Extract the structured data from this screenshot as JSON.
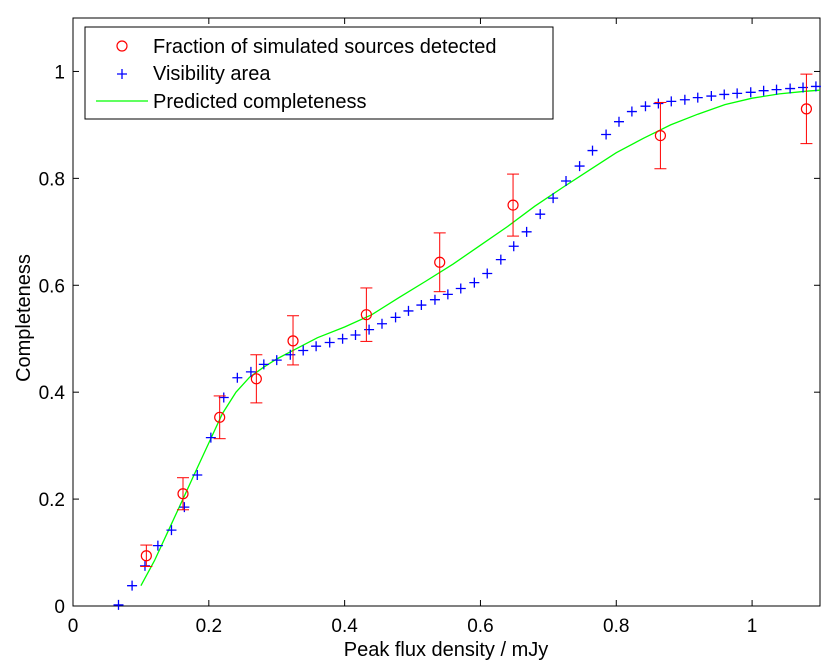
{
  "chart_data": {
    "type": "scatter",
    "title": "",
    "xlabel": "Peak flux density / mJy",
    "ylabel": "Completeness",
    "xlim": [
      0,
      1.1
    ],
    "ylim": [
      0,
      1.1
    ],
    "xticks": [
      0,
      0.2,
      0.4,
      0.6,
      0.8,
      1
    ],
    "yticks": [
      0,
      0.2,
      0.4,
      0.6,
      0.8,
      1
    ],
    "xtick_labels": [
      "0",
      "0.2",
      "0.4",
      "0.6",
      "0.8",
      "1"
    ],
    "ytick_labels": [
      "0",
      "0.2",
      "0.4",
      "0.6",
      "0.8",
      "1"
    ],
    "grid": false,
    "legend_position": "top-left",
    "colors": {
      "detected": "#ff0000",
      "visibility": "#0000ff",
      "predicted": "#00ff00"
    },
    "series": [
      {
        "name": "Fraction of simulated sources detected",
        "marker": "circle",
        "x": [
          0.108,
          0.162,
          0.216,
          0.27,
          0.324,
          0.432,
          0.54,
          0.648,
          0.865,
          1.08
        ],
        "y": [
          0.094,
          0.21,
          0.353,
          0.425,
          0.496,
          0.545,
          0.643,
          0.75,
          0.88,
          0.93
        ],
        "err_low": [
          0.02,
          0.03,
          0.04,
          0.045,
          0.045,
          0.05,
          0.055,
          0.058,
          0.062,
          0.065
        ],
        "err_high": [
          0.02,
          0.03,
          0.04,
          0.045,
          0.047,
          0.05,
          0.055,
          0.058,
          0.062,
          0.065
        ]
      },
      {
        "name": "Visibility area",
        "marker": "plus",
        "x": [
          0.067,
          0.087,
          0.106,
          0.125,
          0.145,
          0.164,
          0.183,
          0.203,
          0.222,
          0.242,
          0.262,
          0.281,
          0.3,
          0.32,
          0.339,
          0.358,
          0.378,
          0.397,
          0.416,
          0.436,
          0.455,
          0.475,
          0.494,
          0.513,
          0.533,
          0.552,
          0.571,
          0.591,
          0.61,
          0.63,
          0.649,
          0.668,
          0.688,
          0.707,
          0.726,
          0.746,
          0.765,
          0.785,
          0.804,
          0.823,
          0.843,
          0.862,
          0.881,
          0.901,
          0.92,
          0.94,
          0.959,
          0.978,
          0.998,
          1.017,
          1.036,
          1.056,
          1.075,
          1.094
        ],
        "y": [
          0.002,
          0.038,
          0.075,
          0.113,
          0.142,
          0.185,
          0.245,
          0.315,
          0.39,
          0.427,
          0.438,
          0.452,
          0.46,
          0.47,
          0.478,
          0.486,
          0.493,
          0.5,
          0.507,
          0.517,
          0.528,
          0.54,
          0.552,
          0.563,
          0.573,
          0.583,
          0.594,
          0.605,
          0.622,
          0.648,
          0.673,
          0.7,
          0.733,
          0.763,
          0.795,
          0.823,
          0.852,
          0.882,
          0.906,
          0.925,
          0.935,
          0.94,
          0.944,
          0.947,
          0.951,
          0.954,
          0.957,
          0.959,
          0.961,
          0.964,
          0.966,
          0.968,
          0.97,
          0.972
        ]
      },
      {
        "name": "Predicted completeness",
        "marker": "line",
        "x": [
          0.1,
          0.12,
          0.14,
          0.16,
          0.18,
          0.2,
          0.22,
          0.24,
          0.26,
          0.28,
          0.3,
          0.33,
          0.36,
          0.4,
          0.44,
          0.48,
          0.52,
          0.56,
          0.6,
          0.64,
          0.68,
          0.72,
          0.76,
          0.8,
          0.84,
          0.88,
          0.92,
          0.96,
          1.0,
          1.04,
          1.08,
          1.1
        ],
        "y": [
          0.038,
          0.085,
          0.14,
          0.195,
          0.25,
          0.305,
          0.36,
          0.4,
          0.428,
          0.446,
          0.462,
          0.482,
          0.502,
          0.522,
          0.545,
          0.577,
          0.608,
          0.64,
          0.675,
          0.71,
          0.748,
          0.782,
          0.815,
          0.848,
          0.875,
          0.9,
          0.92,
          0.938,
          0.95,
          0.958,
          0.963,
          0.965
        ]
      }
    ]
  }
}
